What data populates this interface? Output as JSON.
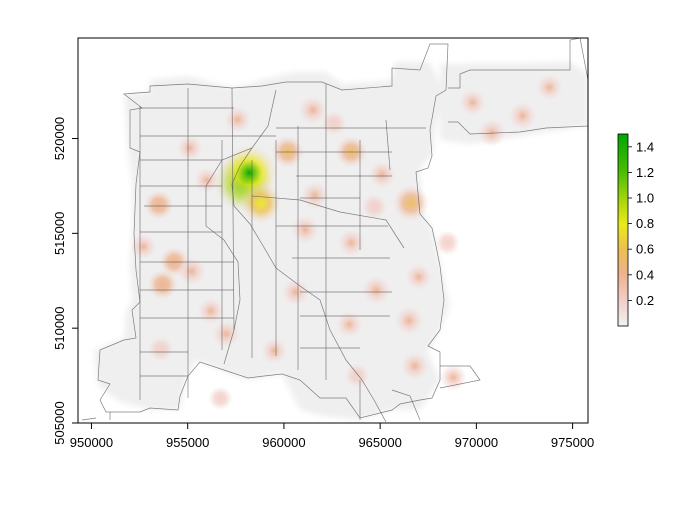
{
  "chart_data": {
    "type": "heatmap",
    "xlim": [
      949300,
      975800
    ],
    "ylim": [
      505000,
      525300
    ],
    "x_ticks": [
      {
        "value": 950000,
        "label": "950000"
      },
      {
        "value": 955000,
        "label": "955000"
      },
      {
        "value": 960000,
        "label": "960000"
      },
      {
        "value": 965000,
        "label": "965000"
      },
      {
        "value": 970000,
        "label": "970000"
      },
      {
        "value": 975000,
        "label": "975000"
      }
    ],
    "y_ticks": [
      {
        "value": 505000,
        "label": "505000"
      },
      {
        "value": 510000,
        "label": "510000"
      },
      {
        "value": 515000,
        "label": "515000"
      },
      {
        "value": 520000,
        "label": "520000"
      }
    ],
    "legend": {
      "placement": "right",
      "range": [
        0,
        1.5
      ],
      "ticks": [
        {
          "value": 0.2,
          "label": "0.2"
        },
        {
          "value": 0.4,
          "label": "0.4"
        },
        {
          "value": 0.6,
          "label": "0.6"
        },
        {
          "value": 0.8,
          "label": "0.8"
        },
        {
          "value": 1.0,
          "label": "1.0"
        },
        {
          "value": 1.2,
          "label": "1.2"
        },
        {
          "value": 1.4,
          "label": "1.4"
        }
      ],
      "colors": [
        {
          "stop": 0.0,
          "color": "#F2F2F2"
        },
        {
          "stop": 0.13,
          "color": "#F1CFC9"
        },
        {
          "stop": 0.27,
          "color": "#EDB28E"
        },
        {
          "stop": 0.4,
          "color": "#EBBF52"
        },
        {
          "stop": 0.53,
          "color": "#EBEA1A"
        },
        {
          "stop": 0.67,
          "color": "#9ED40A"
        },
        {
          "stop": 0.8,
          "color": "#4CBE06"
        },
        {
          "stop": 1.0,
          "color": "#00A600"
        }
      ]
    },
    "grid": false,
    "hotspots": [
      {
        "x": 957900,
        "y": 517700,
        "value": 1.45
      },
      {
        "x": 958200,
        "y": 518200,
        "value": 1.3
      },
      {
        "x": 958800,
        "y": 516600,
        "value": 0.75
      },
      {
        "x": 966600,
        "y": 516600,
        "value": 0.6
      },
      {
        "x": 960200,
        "y": 519300,
        "value": 0.45
      },
      {
        "x": 963500,
        "y": 519300,
        "value": 0.42
      },
      {
        "x": 953500,
        "y": 516500,
        "value": 0.35
      },
      {
        "x": 954300,
        "y": 513500,
        "value": 0.35
      },
      {
        "x": 953700,
        "y": 512300,
        "value": 0.38
      },
      {
        "x": 955200,
        "y": 513000,
        "value": 0.3
      },
      {
        "x": 961500,
        "y": 521500,
        "value": 0.3
      },
      {
        "x": 963500,
        "y": 514500,
        "value": 0.25
      },
      {
        "x": 964800,
        "y": 512000,
        "value": 0.3
      },
      {
        "x": 966500,
        "y": 510400,
        "value": 0.3
      },
      {
        "x": 956200,
        "y": 510900,
        "value": 0.22
      },
      {
        "x": 960600,
        "y": 511900,
        "value": 0.25
      },
      {
        "x": 961100,
        "y": 515200,
        "value": 0.28
      },
      {
        "x": 957000,
        "y": 509700,
        "value": 0.25
      },
      {
        "x": 955100,
        "y": 519500,
        "value": 0.2
      },
      {
        "x": 957600,
        "y": 521000,
        "value": 0.22
      },
      {
        "x": 970800,
        "y": 520300,
        "value": 0.28
      },
      {
        "x": 972400,
        "y": 521200,
        "value": 0.26
      },
      {
        "x": 969800,
        "y": 521900,
        "value": 0.22
      },
      {
        "x": 973800,
        "y": 522700,
        "value": 0.2
      },
      {
        "x": 966800,
        "y": 508000,
        "value": 0.28
      },
      {
        "x": 968800,
        "y": 507400,
        "value": 0.24
      },
      {
        "x": 963400,
        "y": 510200,
        "value": 0.22
      },
      {
        "x": 959500,
        "y": 508800,
        "value": 0.2
      },
      {
        "x": 965100,
        "y": 518100,
        "value": 0.25
      },
      {
        "x": 961600,
        "y": 517000,
        "value": 0.26
      },
      {
        "x": 956000,
        "y": 517800,
        "value": 0.2
      },
      {
        "x": 952700,
        "y": 514300,
        "value": 0.2
      },
      {
        "x": 964700,
        "y": 516400,
        "value": 0.18
      },
      {
        "x": 963800,
        "y": 507500,
        "value": 0.15
      },
      {
        "x": 956700,
        "y": 506300,
        "value": 0.15
      },
      {
        "x": 953600,
        "y": 508900,
        "value": 0.18
      },
      {
        "x": 962600,
        "y": 520800,
        "value": 0.18
      },
      {
        "x": 968500,
        "y": 514500,
        "value": 0.18
      },
      {
        "x": 967000,
        "y": 512700,
        "value": 0.2
      }
    ]
  }
}
